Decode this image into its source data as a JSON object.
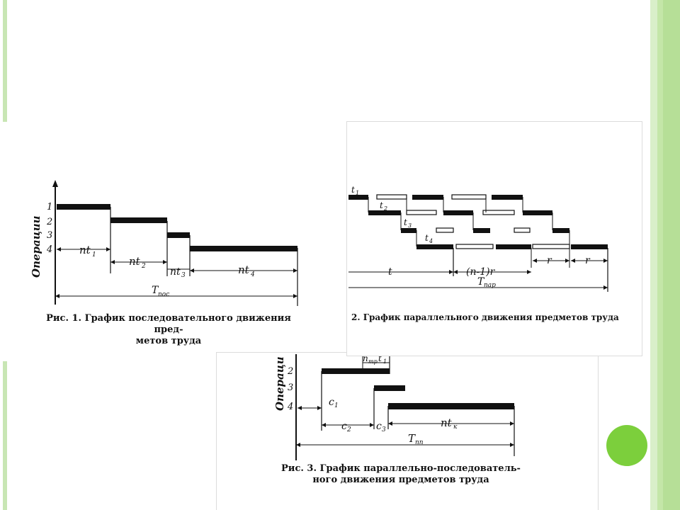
{
  "colors": {
    "accent_circle": "#7ccf3c",
    "side_bar_light": "#d9efc9",
    "side_bar_mid": "#b6df97",
    "ink": "#111111"
  },
  "fig1": {
    "y_axis_label": "Операции",
    "ops": [
      "1",
      "2",
      "3",
      "4"
    ],
    "labels": {
      "nt1": "nt",
      "nt1_sub": "1",
      "nt2": "nt",
      "nt2_sub": "2",
      "nt3": "nt",
      "nt3_sub": "3",
      "nt4": "nt",
      "nt4_sub": "4",
      "total": "T",
      "total_sub": "пос"
    },
    "caption_line1": "Рис. 1. График последовательного движения пред-",
    "caption_line2": "метов труда"
  },
  "fig2": {
    "labels": {
      "t1": "t",
      "t1_sub": "1",
      "t2": "t",
      "t2_sub": "2",
      "t3": "t",
      "t3_sub": "3",
      "t4": "t",
      "t4_sub": "4",
      "t": "t",
      "n1r": "(n-1)r",
      "r1": "r",
      "r2": "r",
      "total": "T",
      "total_sub": "пар"
    },
    "caption": "2. График параллельного движения предметов труда"
  },
  "fig3": {
    "y_axis_label": "Операци",
    "ops": [
      "2",
      "3",
      "4"
    ],
    "labels": {
      "ntr_t1": "n",
      "ntr_sub": "тр",
      "t1b": "t",
      "t1b_sub": "1",
      "c1": "c",
      "c1_sub": "1",
      "c2": "c",
      "c2_sub": "2",
      "c3": "c",
      "c3_sub": "3",
      "ntk": "nt",
      "ntk_sub": "к",
      "total": "T",
      "total_sub": "пп"
    },
    "caption_line1": "Рис. 3. График параллельно-последователь-",
    "caption_line2": "ного движения предметов труда"
  }
}
